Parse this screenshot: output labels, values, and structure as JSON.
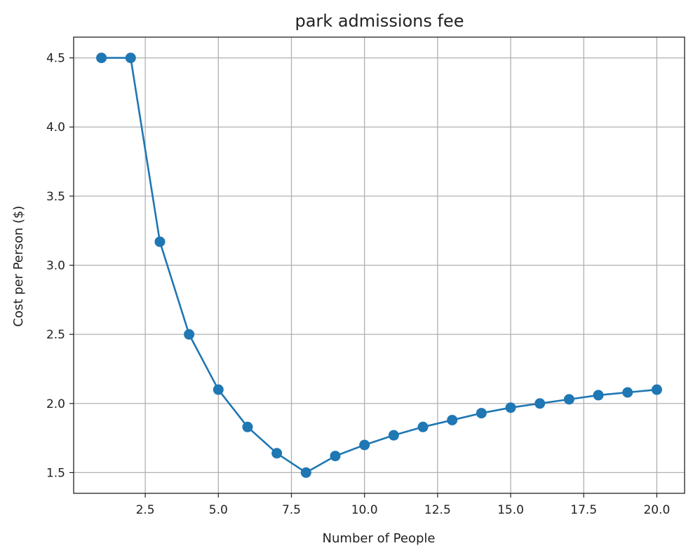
{
  "chart_data": {
    "type": "line",
    "title": "park admissions fee",
    "xlabel": "Number of People",
    "ylabel": "Cost per Person ($)",
    "xlim": [
      0.05,
      20.95
    ],
    "ylim": [
      1.35,
      4.65
    ],
    "x_ticks": [
      "2.5",
      "5.0",
      "7.5",
      "10.0",
      "12.5",
      "15.0",
      "17.5",
      "20.0"
    ],
    "x_tick_values": [
      2.5,
      5.0,
      7.5,
      10.0,
      12.5,
      15.0,
      17.5,
      20.0
    ],
    "y_ticks": [
      "1.5",
      "2.0",
      "2.5",
      "3.0",
      "3.5",
      "4.0",
      "4.5"
    ],
    "y_tick_values": [
      1.5,
      2.0,
      2.5,
      3.0,
      3.5,
      4.0,
      4.5
    ],
    "grid": true,
    "marker": "circle",
    "color": "#1f77b4",
    "series": [
      {
        "x": [
          1,
          2,
          3,
          4,
          5,
          6,
          7,
          8,
          9,
          10,
          11,
          12,
          13,
          14,
          15,
          16,
          17,
          18,
          19,
          20
        ],
        "values": [
          4.5,
          4.5,
          3.17,
          2.5,
          2.1,
          1.83,
          1.64,
          1.5,
          1.62,
          1.7,
          1.77,
          1.83,
          1.88,
          1.93,
          1.97,
          2.0,
          2.03,
          2.06,
          2.08,
          2.1
        ]
      }
    ]
  }
}
